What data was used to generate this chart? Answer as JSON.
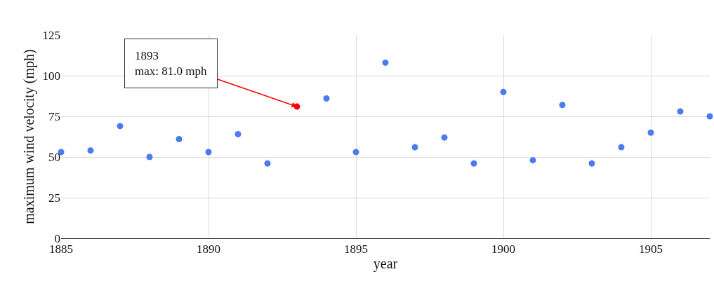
{
  "chart_data": {
    "type": "scatter",
    "xlabel": "year",
    "ylabel": "maximum wind velocity (mph)",
    "x": [
      1885,
      1886,
      1887,
      1888,
      1889,
      1890,
      1891,
      1892,
      1893,
      1894,
      1895,
      1896,
      1897,
      1898,
      1899,
      1900,
      1901,
      1902,
      1903,
      1904,
      1905,
      1906,
      1907
    ],
    "values": [
      53,
      54,
      69,
      50,
      61,
      53,
      64,
      46,
      81,
      86,
      53,
      108,
      56,
      62,
      46,
      90,
      48,
      82,
      46,
      56,
      65,
      78,
      75
    ],
    "colors": [
      "#4a7cf0",
      "#4a7cf0",
      "#4a7cf0",
      "#4a7cf0",
      "#4a7cf0",
      "#4a7cf0",
      "#4a7cf0",
      "#4a7cf0",
      "#ff0000",
      "#4a7cf0",
      "#4a7cf0",
      "#4a7cf0",
      "#4a7cf0",
      "#4a7cf0",
      "#4a7cf0",
      "#4a7cf0",
      "#4a7cf0",
      "#4a7cf0",
      "#4a7cf0",
      "#4a7cf0",
      "#4a7cf0",
      "#4a7cf0",
      "#4a7cf0"
    ],
    "xlim": [
      1885,
      1907
    ],
    "xticks": [
      1885,
      1890,
      1895,
      1900,
      1905
    ],
    "ylim": [
      0,
      125
    ],
    "yticks": [
      0,
      25,
      50,
      75,
      100,
      125
    ],
    "grid": true,
    "marker": "circle",
    "legend": false,
    "annotations": [
      {
        "text": "1893\nmax: 81.0 mph",
        "x": 1893,
        "y": 81
      }
    ]
  }
}
